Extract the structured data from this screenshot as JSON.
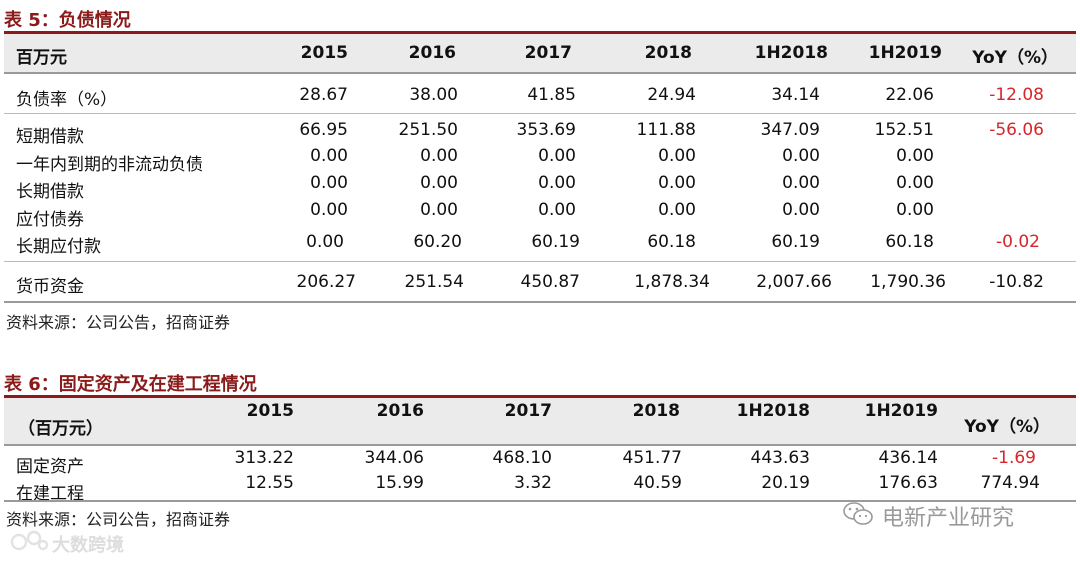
{
  "table5": {
    "title": "表 5：负债情况",
    "headers": [
      "百万元",
      "2015",
      "2016",
      "2017",
      "2018",
      "1H2018",
      "1H2019",
      "YoY（%）"
    ],
    "rows": [
      {
        "label": "负债率（%）",
        "values": [
          "28.67",
          "38.00",
          "41.85",
          "24.94",
          "34.14",
          "22.06"
        ],
        "yoy": "-12.08",
        "yoy_color": "red"
      },
      {
        "label": "短期借款",
        "values": [
          "66.95",
          "251.50",
          "353.69",
          "111.88",
          "347.09",
          "152.51"
        ],
        "yoy": "-56.06",
        "yoy_color": "red"
      },
      {
        "label": "一年内到期的非流动负债",
        "values": [
          "0.00",
          "0.00",
          "0.00",
          "0.00",
          "0.00",
          "0.00"
        ],
        "yoy": "",
        "yoy_color": "black"
      },
      {
        "label": "长期借款",
        "values": [
          "0.00",
          "0.00",
          "0.00",
          "0.00",
          "0.00",
          "0.00"
        ],
        "yoy": "",
        "yoy_color": "black"
      },
      {
        "label": "应付债券",
        "values": [
          "0.00",
          "0.00",
          "0.00",
          "0.00",
          "0.00",
          "0.00"
        ],
        "yoy": "",
        "yoy_color": "black"
      },
      {
        "label": "长期应付款",
        "values": [
          "0.00",
          "60.20",
          "60.19",
          "60.18",
          "60.19",
          "60.18"
        ],
        "yoy": "-0.02",
        "yoy_color": "red"
      },
      {
        "label": "货币资金",
        "values": [
          "206.27",
          "251.54",
          "450.87",
          "1,878.34",
          "2,007.66",
          "1,790.36"
        ],
        "yoy": "-10.82",
        "yoy_color": "black"
      }
    ],
    "source": "资料来源：公司公告，招商证券"
  },
  "table6": {
    "title": "表 6：固定资产及在建工程情况",
    "headers": [
      "（百万元）",
      "2015",
      "2016",
      "2017",
      "2018",
      "1H2018",
      "1H2019",
      "YoY（%）"
    ],
    "rows": [
      {
        "label": "固定资产",
        "values": [
          "313.22",
          "344.06",
          "468.10",
          "451.77",
          "443.63",
          "436.14"
        ],
        "yoy": "-1.69",
        "yoy_color": "red"
      },
      {
        "label": "在建工程",
        "values": [
          "12.55",
          "15.99",
          "3.32",
          "40.59",
          "20.19",
          "176.63"
        ],
        "yoy": "774.94",
        "yoy_color": "black"
      }
    ],
    "source": "资料来源：公司公告，招商证券"
  },
  "watermarks": {
    "wechat": "电新产业研究",
    "corner": "大数跨境"
  },
  "colors": {
    "title": "#8b1a1a",
    "negative": "#d8252a",
    "header_bg": "#ebebeb"
  }
}
